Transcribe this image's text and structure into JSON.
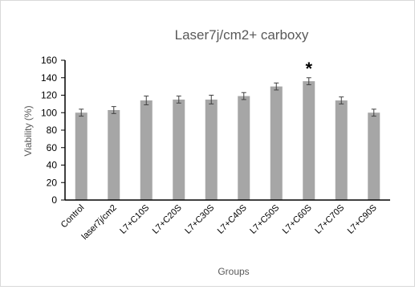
{
  "chart_data": {
    "type": "bar",
    "title": "Laser7j/cm2+ carboxy",
    "xlabel": "Groups",
    "ylabel": "Viability (%)",
    "ylim": [
      0,
      160
    ],
    "yticks": [
      0,
      20,
      40,
      60,
      80,
      100,
      120,
      140,
      160
    ],
    "categories": [
      "Control",
      "laser7j/cm2",
      "L7+C10S",
      "L7+C20S",
      "L7+C30S",
      "L7+C40S",
      "L7+C50S",
      "L7+C60S",
      "L7+C70S",
      "L7+C90S"
    ],
    "values": [
      100,
      103,
      114,
      115,
      115,
      119,
      130,
      136,
      114,
      100
    ],
    "errors": [
      4,
      4,
      5,
      4,
      5,
      4,
      4,
      4,
      4,
      4
    ],
    "annotations": [
      {
        "category": "L7+C60S",
        "text": "*"
      }
    ],
    "bar_color": "#a6a6a6",
    "error_color": "#404040",
    "grid": false,
    "legend": "none"
  }
}
